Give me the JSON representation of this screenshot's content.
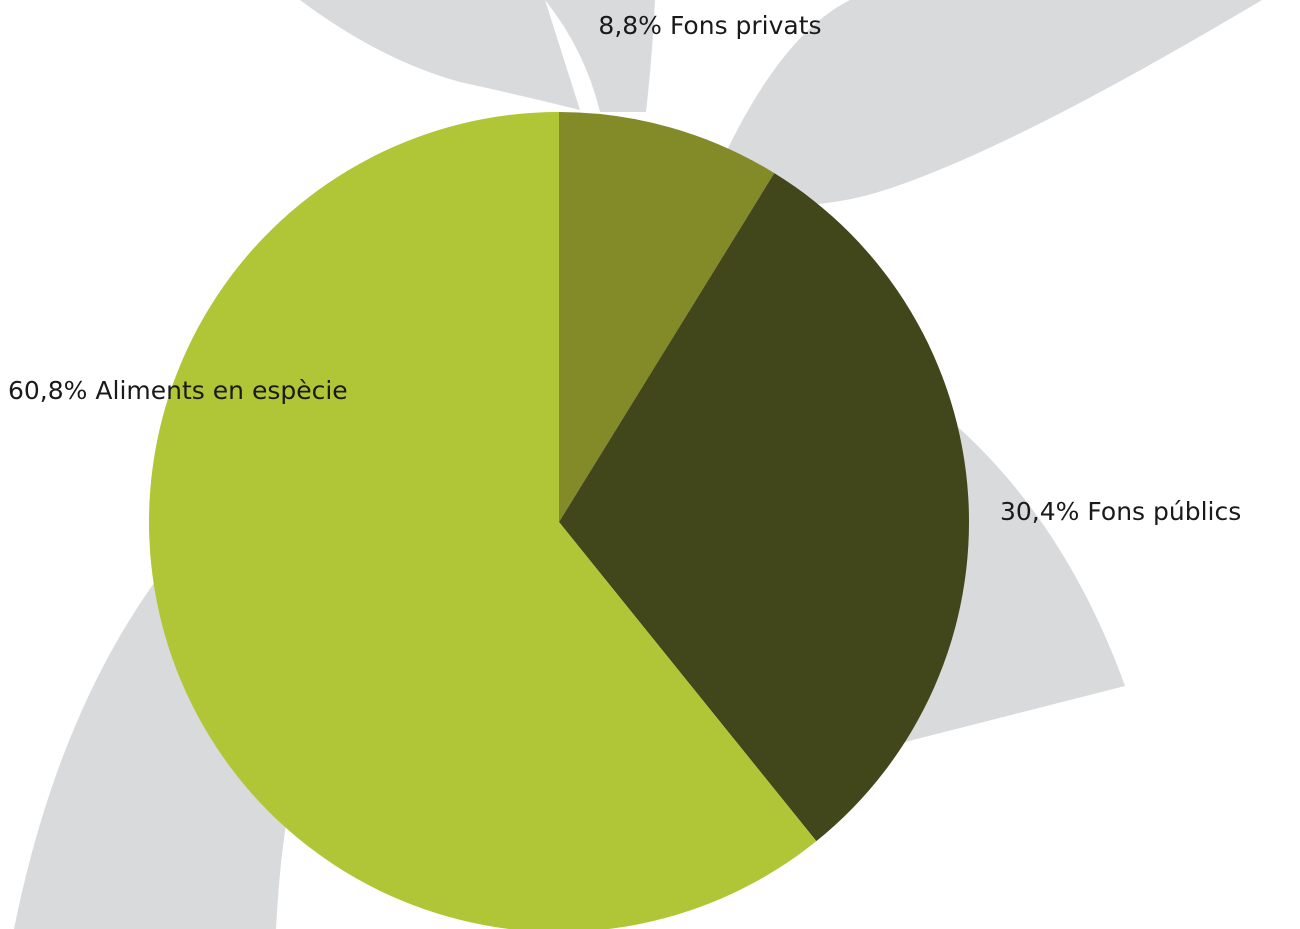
{
  "chart_data": {
    "type": "pie",
    "categories": [
      "Fons privats",
      "Fons públics",
      "Aliments en espècie"
    ],
    "values": [
      8.8,
      30.4,
      60.8
    ],
    "value_labels": [
      "8,8%",
      "30,4%",
      "60,8%"
    ],
    "colors": [
      "#838a28",
      "#41461b",
      "#b0c636"
    ]
  }
}
